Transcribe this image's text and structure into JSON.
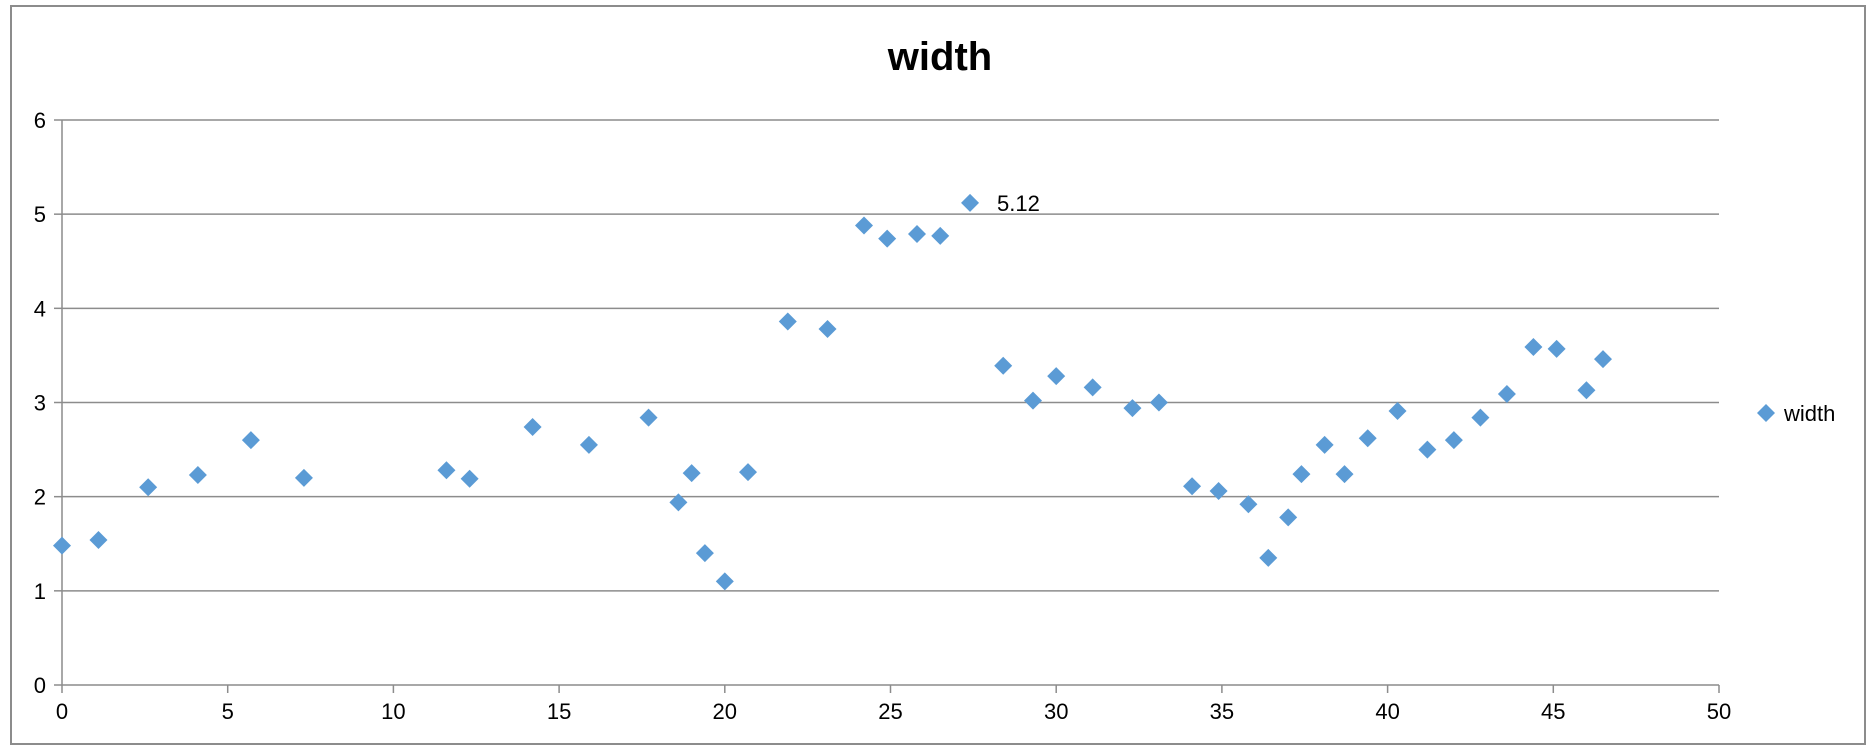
{
  "chart_data": {
    "type": "scatter",
    "title": "width",
    "xlabel": "",
    "ylabel": "",
    "xlim": [
      0,
      50
    ],
    "ylim": [
      0,
      6
    ],
    "x_ticks": [
      0,
      5,
      10,
      15,
      20,
      25,
      30,
      35,
      40,
      45,
      50
    ],
    "y_ticks": [
      0,
      1,
      2,
      3,
      4,
      5,
      6
    ],
    "grid": {
      "horizontal": true,
      "vertical": false
    },
    "legend": {
      "placement": "right",
      "entries": [
        "width"
      ]
    },
    "series": [
      {
        "name": "width",
        "color": "#5B9BD5",
        "marker": "diamond",
        "points": [
          [
            0.0,
            1.48
          ],
          [
            1.1,
            1.54
          ],
          [
            2.6,
            2.1
          ],
          [
            4.1,
            2.23
          ],
          [
            5.7,
            2.6
          ],
          [
            7.3,
            2.2
          ],
          [
            11.6,
            2.28
          ],
          [
            12.3,
            2.19
          ],
          [
            14.2,
            2.74
          ],
          [
            15.9,
            2.55
          ],
          [
            17.7,
            2.84
          ],
          [
            18.6,
            1.94
          ],
          [
            19.0,
            2.25
          ],
          [
            19.4,
            1.4
          ],
          [
            20.0,
            1.1
          ],
          [
            20.7,
            2.26
          ],
          [
            21.9,
            3.86
          ],
          [
            23.1,
            3.78
          ],
          [
            24.2,
            4.88
          ],
          [
            24.9,
            4.74
          ],
          [
            25.8,
            4.79
          ],
          [
            26.5,
            4.77
          ],
          [
            27.4,
            5.12
          ],
          [
            28.4,
            3.39
          ],
          [
            29.3,
            3.02
          ],
          [
            30.0,
            3.28
          ],
          [
            31.1,
            3.16
          ],
          [
            32.3,
            2.94
          ],
          [
            33.1,
            3.0
          ],
          [
            34.1,
            2.11
          ],
          [
            34.9,
            2.06
          ],
          [
            35.8,
            1.92
          ],
          [
            36.4,
            1.35
          ],
          [
            37.0,
            1.78
          ],
          [
            37.4,
            2.24
          ],
          [
            38.1,
            2.55
          ],
          [
            38.7,
            2.24
          ],
          [
            39.4,
            2.62
          ],
          [
            40.3,
            2.91
          ],
          [
            41.2,
            2.5
          ],
          [
            42.0,
            2.6
          ],
          [
            42.8,
            2.84
          ],
          [
            43.6,
            3.09
          ],
          [
            44.4,
            3.59
          ],
          [
            45.1,
            3.57
          ],
          [
            46.0,
            3.13
          ],
          [
            46.5,
            3.46
          ]
        ]
      }
    ],
    "annotations": [
      {
        "x": 27.4,
        "y": 5.12,
        "text": "5.12"
      }
    ]
  }
}
